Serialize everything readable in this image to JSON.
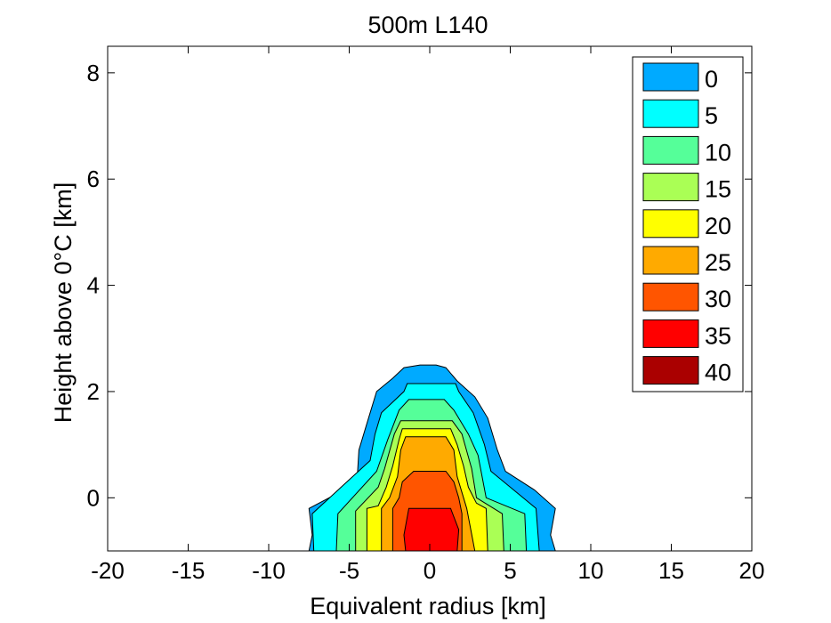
{
  "chart_data": {
    "type": "contourf",
    "title": "500m L140",
    "xlabel": "Equivalent radius [km]",
    "ylabel": "Height above 0°C [km]",
    "xlim": [
      -20,
      20
    ],
    "ylim": [
      -1,
      8.5
    ],
    "xticks": [
      -20,
      -15,
      -10,
      -5,
      0,
      5,
      10,
      15,
      20
    ],
    "yticks": [
      0,
      2,
      4,
      6,
      8
    ],
    "legend_position": "top-right",
    "levels": [
      {
        "value": 0,
        "label": "0",
        "color": "#00aaff",
        "outline": [
          [
            -7.5,
            -1
          ],
          [
            -7.3,
            -0.7
          ],
          [
            -7.5,
            -0.2
          ],
          [
            -5,
            0.2
          ],
          [
            -4.5,
            0.4
          ],
          [
            -4.4,
            0.9
          ],
          [
            -3.8,
            1.5
          ],
          [
            -3.3,
            2.0
          ],
          [
            -2.3,
            2.25
          ],
          [
            -1.6,
            2.45
          ],
          [
            -0.6,
            2.5
          ],
          [
            0.4,
            2.5
          ],
          [
            1.0,
            2.45
          ],
          [
            1.7,
            2.2
          ],
          [
            2.8,
            1.9
          ],
          [
            3.6,
            1.5
          ],
          [
            4.2,
            0.9
          ],
          [
            4.7,
            0.5
          ],
          [
            6.5,
            0.15
          ],
          [
            7.8,
            -0.2
          ],
          [
            7.5,
            -0.7
          ],
          [
            7.8,
            -1
          ]
        ]
      },
      {
        "value": 5,
        "label": "5",
        "color": "#00ffff",
        "outline": [
          [
            -7.2,
            -1
          ],
          [
            -7.3,
            -0.3
          ],
          [
            -3.7,
            0.7
          ],
          [
            -3.4,
            1.2
          ],
          [
            -3.0,
            1.6
          ],
          [
            -1.6,
            2.0
          ],
          [
            -1.4,
            2.15
          ],
          [
            1.6,
            2.15
          ],
          [
            1.8,
            2.0
          ],
          [
            2.7,
            1.6
          ],
          [
            3.4,
            1.0
          ],
          [
            3.8,
            0.5
          ],
          [
            6.6,
            -0.2
          ],
          [
            6.8,
            -1
          ]
        ]
      },
      {
        "value": 10,
        "label": "10",
        "color": "#55ff99",
        "outline": [
          [
            -5.8,
            -1
          ],
          [
            -5.7,
            -0.3
          ],
          [
            -3.3,
            0.5
          ],
          [
            -2.6,
            1.1
          ],
          [
            -1.9,
            1.65
          ],
          [
            -1.3,
            1.85
          ],
          [
            0.9,
            1.85
          ],
          [
            1.5,
            1.65
          ],
          [
            2.4,
            1.2
          ],
          [
            3.0,
            0.8
          ],
          [
            3.5,
            0.0
          ],
          [
            5.9,
            -0.3
          ],
          [
            6.0,
            -1
          ]
        ]
      },
      {
        "value": 15,
        "label": "15",
        "color": "#aaff55",
        "outline": [
          [
            -4.6,
            -1
          ],
          [
            -4.6,
            -0.25
          ],
          [
            -3.2,
            0.2
          ],
          [
            -2.8,
            0.55
          ],
          [
            -2.2,
            1.2
          ],
          [
            -1.8,
            1.45
          ],
          [
            1.4,
            1.45
          ],
          [
            2.0,
            1.2
          ],
          [
            2.6,
            0.55
          ],
          [
            2.9,
            0.0
          ],
          [
            4.5,
            -0.3
          ],
          [
            4.6,
            -1
          ]
        ]
      },
      {
        "value": 20,
        "label": "20",
        "color": "#ffff00",
        "outline": [
          [
            -3.9,
            -1
          ],
          [
            -3.9,
            -0.2
          ],
          [
            -3.2,
            -0.15
          ],
          [
            -2.7,
            0.2
          ],
          [
            -2.3,
            0.6
          ],
          [
            -1.9,
            1.1
          ],
          [
            -1.7,
            1.3
          ],
          [
            1.3,
            1.3
          ],
          [
            1.7,
            1.0
          ],
          [
            2.1,
            0.6
          ],
          [
            2.4,
            0.2
          ],
          [
            2.9,
            -0.1
          ],
          [
            3.5,
            -0.2
          ],
          [
            3.6,
            -1
          ]
        ]
      },
      {
        "value": 25,
        "label": "25",
        "color": "#ffaa00",
        "outline": [
          [
            -3.0,
            -1
          ],
          [
            -3.0,
            -0.2
          ],
          [
            -2.5,
            0.0
          ],
          [
            -2.0,
            0.4
          ],
          [
            -1.8,
            0.9
          ],
          [
            -1.5,
            1.15
          ],
          [
            1.0,
            1.15
          ],
          [
            1.5,
            0.9
          ],
          [
            1.7,
            0.4
          ],
          [
            2.0,
            0.1
          ],
          [
            2.3,
            -0.2
          ],
          [
            2.8,
            -1
          ]
        ]
      },
      {
        "value": 30,
        "label": "30",
        "color": "#ff5500",
        "outline": [
          [
            -2.3,
            -1
          ],
          [
            -2.3,
            -0.2
          ],
          [
            -1.9,
            0.0
          ],
          [
            -1.7,
            0.3
          ],
          [
            -1.0,
            0.5
          ],
          [
            1.0,
            0.5
          ],
          [
            1.5,
            0.3
          ],
          [
            1.8,
            0.0
          ],
          [
            2.0,
            -0.3
          ],
          [
            2.0,
            -1
          ]
        ]
      },
      {
        "value": 35,
        "label": "35",
        "color": "#ff0000",
        "outline": [
          [
            -1.5,
            -1
          ],
          [
            -1.6,
            -0.7
          ],
          [
            -1.3,
            -0.2
          ],
          [
            1.3,
            -0.2
          ],
          [
            1.8,
            -0.6
          ],
          [
            1.7,
            -1
          ]
        ]
      },
      {
        "value": 40,
        "label": "40",
        "color": "#aa0000",
        "outline": []
      }
    ]
  }
}
